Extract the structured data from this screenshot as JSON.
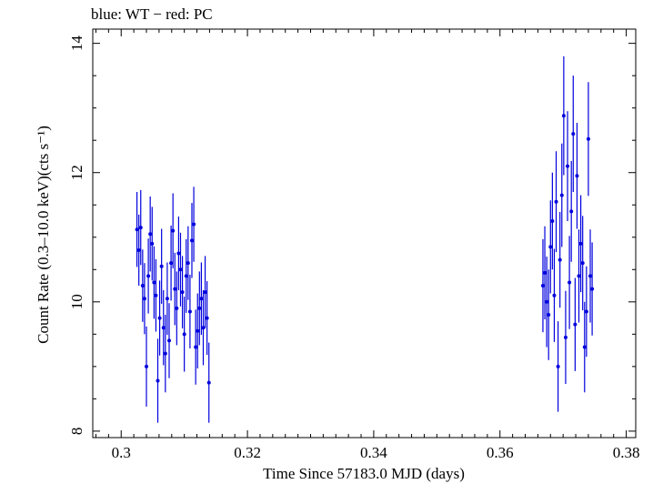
{
  "chart_data": {
    "type": "scatter",
    "title": "blue: WT − red: PC",
    "xlabel": "Time Since 57183.0 MJD (days)",
    "ylabel": "Count Rate (0.3–10.0 keV)(cts s⁻¹)",
    "xlim": [
      0.2955,
      0.3815
    ],
    "ylim": [
      7.9,
      14.22
    ],
    "xticks": [
      0.3,
      0.32,
      0.34,
      0.36,
      0.38
    ],
    "xtick_labels": [
      "0.3",
      "0.32",
      "0.34",
      "0.36",
      "0.38"
    ],
    "yticks": [
      8,
      10,
      12,
      14
    ],
    "ytick_labels": [
      "8",
      "10",
      "12",
      "14"
    ],
    "grid": false,
    "series": [
      {
        "name": "WT",
        "color": "#0000dd",
        "points": [
          {
            "x": 0.3025,
            "y": 11.12,
            "err": 0.58
          },
          {
            "x": 0.3028,
            "y": 10.8,
            "err": 0.55
          },
          {
            "x": 0.3031,
            "y": 11.15,
            "err": 0.58
          },
          {
            "x": 0.3034,
            "y": 10.25,
            "err": 0.56
          },
          {
            "x": 0.3037,
            "y": 10.05,
            "err": 0.55
          },
          {
            "x": 0.304,
            "y": 9.0,
            "err": 0.62
          },
          {
            "x": 0.3043,
            "y": 10.4,
            "err": 0.58
          },
          {
            "x": 0.3046,
            "y": 11.05,
            "err": 0.58
          },
          {
            "x": 0.3049,
            "y": 10.9,
            "err": 0.57
          },
          {
            "x": 0.3052,
            "y": 10.3,
            "err": 0.56
          },
          {
            "x": 0.3055,
            "y": 10.1,
            "err": 0.56
          },
          {
            "x": 0.3058,
            "y": 8.78,
            "err": 0.65
          },
          {
            "x": 0.3061,
            "y": 9.75,
            "err": 0.58
          },
          {
            "x": 0.3064,
            "y": 10.55,
            "err": 0.58
          },
          {
            "x": 0.3067,
            "y": 9.6,
            "err": 0.58
          },
          {
            "x": 0.307,
            "y": 9.2,
            "err": 0.6
          },
          {
            "x": 0.3073,
            "y": 10.05,
            "err": 0.56
          },
          {
            "x": 0.3076,
            "y": 9.4,
            "err": 0.58
          },
          {
            "x": 0.3079,
            "y": 10.6,
            "err": 0.58
          },
          {
            "x": 0.3082,
            "y": 11.1,
            "err": 0.58
          },
          {
            "x": 0.3085,
            "y": 10.2,
            "err": 0.56
          },
          {
            "x": 0.3088,
            "y": 9.9,
            "err": 0.57
          },
          {
            "x": 0.3091,
            "y": 10.75,
            "err": 0.57
          },
          {
            "x": 0.3094,
            "y": 10.5,
            "err": 0.57
          },
          {
            "x": 0.3097,
            "y": 10.15,
            "err": 0.56
          },
          {
            "x": 0.31,
            "y": 9.5,
            "err": 0.58
          },
          {
            "x": 0.3103,
            "y": 10.4,
            "err": 0.57
          },
          {
            "x": 0.3106,
            "y": 10.6,
            "err": 0.57
          },
          {
            "x": 0.3109,
            "y": 9.85,
            "err": 0.57
          },
          {
            "x": 0.3112,
            "y": 10.95,
            "err": 0.58
          },
          {
            "x": 0.3115,
            "y": 11.2,
            "err": 0.58
          },
          {
            "x": 0.3118,
            "y": 9.3,
            "err": 0.58
          },
          {
            "x": 0.3121,
            "y": 9.55,
            "err": 0.58
          },
          {
            "x": 0.3124,
            "y": 9.9,
            "err": 0.57
          },
          {
            "x": 0.3127,
            "y": 10.05,
            "err": 0.56
          },
          {
            "x": 0.313,
            "y": 9.6,
            "err": 0.58
          },
          {
            "x": 0.3133,
            "y": 10.15,
            "err": 0.56
          },
          {
            "x": 0.3136,
            "y": 9.75,
            "err": 0.57
          },
          {
            "x": 0.3139,
            "y": 8.75,
            "err": 0.62
          },
          {
            "x": 0.3668,
            "y": 10.25,
            "err": 0.72
          },
          {
            "x": 0.3671,
            "y": 10.45,
            "err": 0.72
          },
          {
            "x": 0.3674,
            "y": 10.0,
            "err": 0.7
          },
          {
            "x": 0.3677,
            "y": 9.8,
            "err": 0.7
          },
          {
            "x": 0.368,
            "y": 10.85,
            "err": 0.72
          },
          {
            "x": 0.3683,
            "y": 11.25,
            "err": 0.75
          },
          {
            "x": 0.3686,
            "y": 10.1,
            "err": 0.72
          },
          {
            "x": 0.3689,
            "y": 11.55,
            "err": 0.78
          },
          {
            "x": 0.3692,
            "y": 9.0,
            "err": 0.7
          },
          {
            "x": 0.3695,
            "y": 10.65,
            "err": 0.74
          },
          {
            "x": 0.3698,
            "y": 11.65,
            "err": 0.8
          },
          {
            "x": 0.3701,
            "y": 12.88,
            "err": 0.92
          },
          {
            "x": 0.3704,
            "y": 9.45,
            "err": 0.72
          },
          {
            "x": 0.3707,
            "y": 12.1,
            "err": 0.85
          },
          {
            "x": 0.371,
            "y": 10.3,
            "err": 0.72
          },
          {
            "x": 0.3713,
            "y": 11.4,
            "err": 0.78
          },
          {
            "x": 0.3716,
            "y": 12.6,
            "err": 0.9
          },
          {
            "x": 0.3719,
            "y": 9.65,
            "err": 0.72
          },
          {
            "x": 0.3722,
            "y": 11.95,
            "err": 0.82
          },
          {
            "x": 0.3725,
            "y": 10.4,
            "err": 0.72
          },
          {
            "x": 0.3728,
            "y": 10.9,
            "err": 0.75
          },
          {
            "x": 0.3731,
            "y": 10.6,
            "err": 0.73
          },
          {
            "x": 0.3734,
            "y": 9.3,
            "err": 0.7
          },
          {
            "x": 0.3737,
            "y": 9.85,
            "err": 0.7
          },
          {
            "x": 0.374,
            "y": 12.52,
            "err": 0.88
          },
          {
            "x": 0.3743,
            "y": 10.4,
            "err": 0.72
          },
          {
            "x": 0.3746,
            "y": 10.2,
            "err": 0.72
          }
        ]
      }
    ]
  }
}
